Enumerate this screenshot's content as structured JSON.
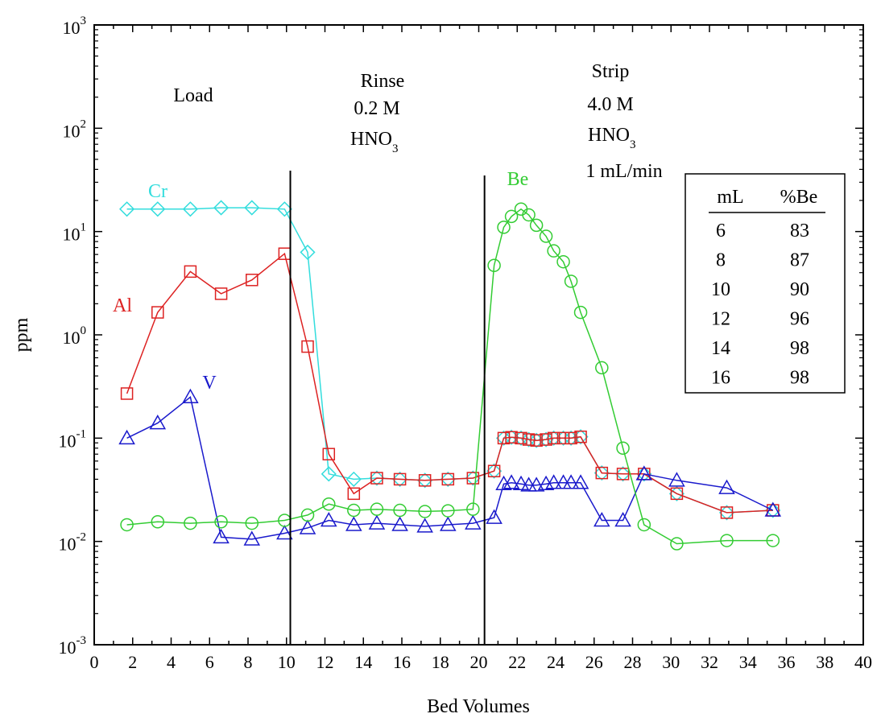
{
  "chart_data": {
    "type": "line",
    "xlabel": "Bed Volumes",
    "ylabel": "ppm",
    "xlim": [
      0,
      40
    ],
    "ylim": [
      0.001,
      1000
    ],
    "yscale": "log",
    "xticks": [
      0,
      2,
      4,
      6,
      8,
      10,
      12,
      14,
      16,
      18,
      20,
      22,
      24,
      26,
      28,
      30,
      32,
      34,
      36,
      38,
      40
    ],
    "yticks": [
      {
        "base": "10",
        "exp": "-3",
        "value": 0.001
      },
      {
        "base": "10",
        "exp": "-2",
        "value": 0.01
      },
      {
        "base": "10",
        "exp": "-1",
        "value": 0.1
      },
      {
        "base": "10",
        "exp": "0",
        "value": 1
      },
      {
        "base": "10",
        "exp": "1",
        "value": 10
      },
      {
        "base": "10",
        "exp": "2",
        "value": 100
      },
      {
        "base": "10",
        "exp": "3",
        "value": 1000
      }
    ],
    "grid": false,
    "phase_lines_x": [
      10.2,
      20.3
    ],
    "annotations": {
      "load": "Load",
      "rinse": [
        "Rinse",
        "0.2 M"
      ],
      "rinse_acid": {
        "main": "HNO",
        "sub": "3"
      },
      "strip": [
        "Strip",
        "4.0 M"
      ],
      "strip_acid": {
        "main": "HNO",
        "sub": "3"
      },
      "strip_rate": "1 mL/min"
    },
    "table": {
      "headers": [
        "mL",
        "%Be"
      ],
      "rows": [
        [
          "6",
          "83"
        ],
        [
          "8",
          "87"
        ],
        [
          "10",
          "90"
        ],
        [
          "12",
          "96"
        ],
        [
          "14",
          "98"
        ],
        [
          "16",
          "98"
        ]
      ]
    },
    "series": [
      {
        "name": "Cr",
        "color": "#33dddd",
        "marker": "diamond",
        "x": [
          1.7,
          3.3,
          5.0,
          6.6,
          8.2,
          9.9,
          11.1,
          12.2,
          13.5,
          14.7,
          15.9,
          17.2,
          18.4,
          19.7,
          20.8,
          21.3,
          21.7,
          22.2,
          22.6,
          23.0,
          23.5,
          23.9,
          24.4,
          24.8,
          25.3,
          26.4,
          27.5,
          28.6,
          30.3,
          32.9,
          35.3
        ],
        "y": [
          16.5,
          16.5,
          16.5,
          17,
          17,
          16.5,
          6.3,
          0.045,
          0.04,
          0.041,
          0.04,
          0.039,
          0.04,
          0.041,
          0.048,
          0.1,
          0.102,
          0.1,
          0.097,
          0.095,
          0.097,
          0.1,
          0.1,
          0.1,
          0.103,
          0.046,
          0.045,
          0.045,
          0.029,
          0.019,
          0.02
        ]
      },
      {
        "name": "Al",
        "color": "#dd2222",
        "marker": "square",
        "x": [
          1.7,
          3.3,
          5.0,
          6.6,
          8.2,
          9.9,
          11.1,
          12.2,
          13.5,
          14.7,
          15.9,
          17.2,
          18.4,
          19.7,
          20.8,
          21.3,
          21.7,
          22.2,
          22.6,
          23.0,
          23.5,
          23.9,
          24.4,
          24.8,
          25.3,
          26.4,
          27.5,
          28.6,
          30.3,
          32.9,
          35.3
        ],
        "y": [
          0.27,
          1.65,
          4.1,
          2.5,
          3.4,
          6.1,
          0.77,
          0.07,
          0.029,
          0.041,
          0.04,
          0.039,
          0.04,
          0.041,
          0.048,
          0.1,
          0.102,
          0.1,
          0.097,
          0.095,
          0.097,
          0.1,
          0.1,
          0.1,
          0.103,
          0.046,
          0.045,
          0.045,
          0.029,
          0.019,
          0.02
        ]
      },
      {
        "name": "V",
        "color": "#1a1acc",
        "marker": "triangle",
        "x": [
          1.7,
          3.3,
          5.0,
          6.6,
          8.2,
          9.9,
          11.1,
          12.2,
          13.5,
          14.7,
          15.9,
          17.2,
          18.4,
          19.7,
          20.8,
          21.3,
          21.7,
          22.2,
          22.6,
          23.0,
          23.5,
          23.9,
          24.4,
          24.8,
          25.3,
          26.4,
          27.5,
          28.6,
          30.3,
          32.9,
          35.3
        ],
        "y": [
          0.1,
          0.14,
          0.25,
          0.011,
          0.0105,
          0.012,
          0.0135,
          0.016,
          0.0145,
          0.015,
          0.0145,
          0.014,
          0.0145,
          0.015,
          0.017,
          0.036,
          0.037,
          0.036,
          0.035,
          0.035,
          0.036,
          0.037,
          0.037,
          0.037,
          0.037,
          0.016,
          0.016,
          0.045,
          0.039,
          0.033,
          0.02
        ]
      },
      {
        "name": "Be",
        "color": "#33cc33",
        "marker": "circle",
        "x": [
          1.7,
          3.3,
          5.0,
          6.6,
          8.2,
          9.9,
          11.1,
          12.2,
          13.5,
          14.7,
          15.9,
          17.2,
          18.4,
          19.7,
          20.8,
          21.3,
          21.7,
          22.2,
          22.6,
          23.0,
          23.5,
          23.9,
          24.4,
          24.8,
          25.3,
          26.4,
          27.5,
          28.6,
          30.3,
          32.9,
          35.3
        ],
        "y": [
          0.0145,
          0.0155,
          0.015,
          0.0155,
          0.015,
          0.016,
          0.018,
          0.023,
          0.02,
          0.0205,
          0.02,
          0.0195,
          0.0198,
          0.0205,
          4.7,
          11,
          14,
          16.5,
          14.5,
          11.5,
          9,
          6.5,
          5.1,
          3.3,
          1.65,
          0.48,
          0.08,
          0.0145,
          0.0095,
          0.0102,
          0.0102
        ]
      }
    ]
  }
}
